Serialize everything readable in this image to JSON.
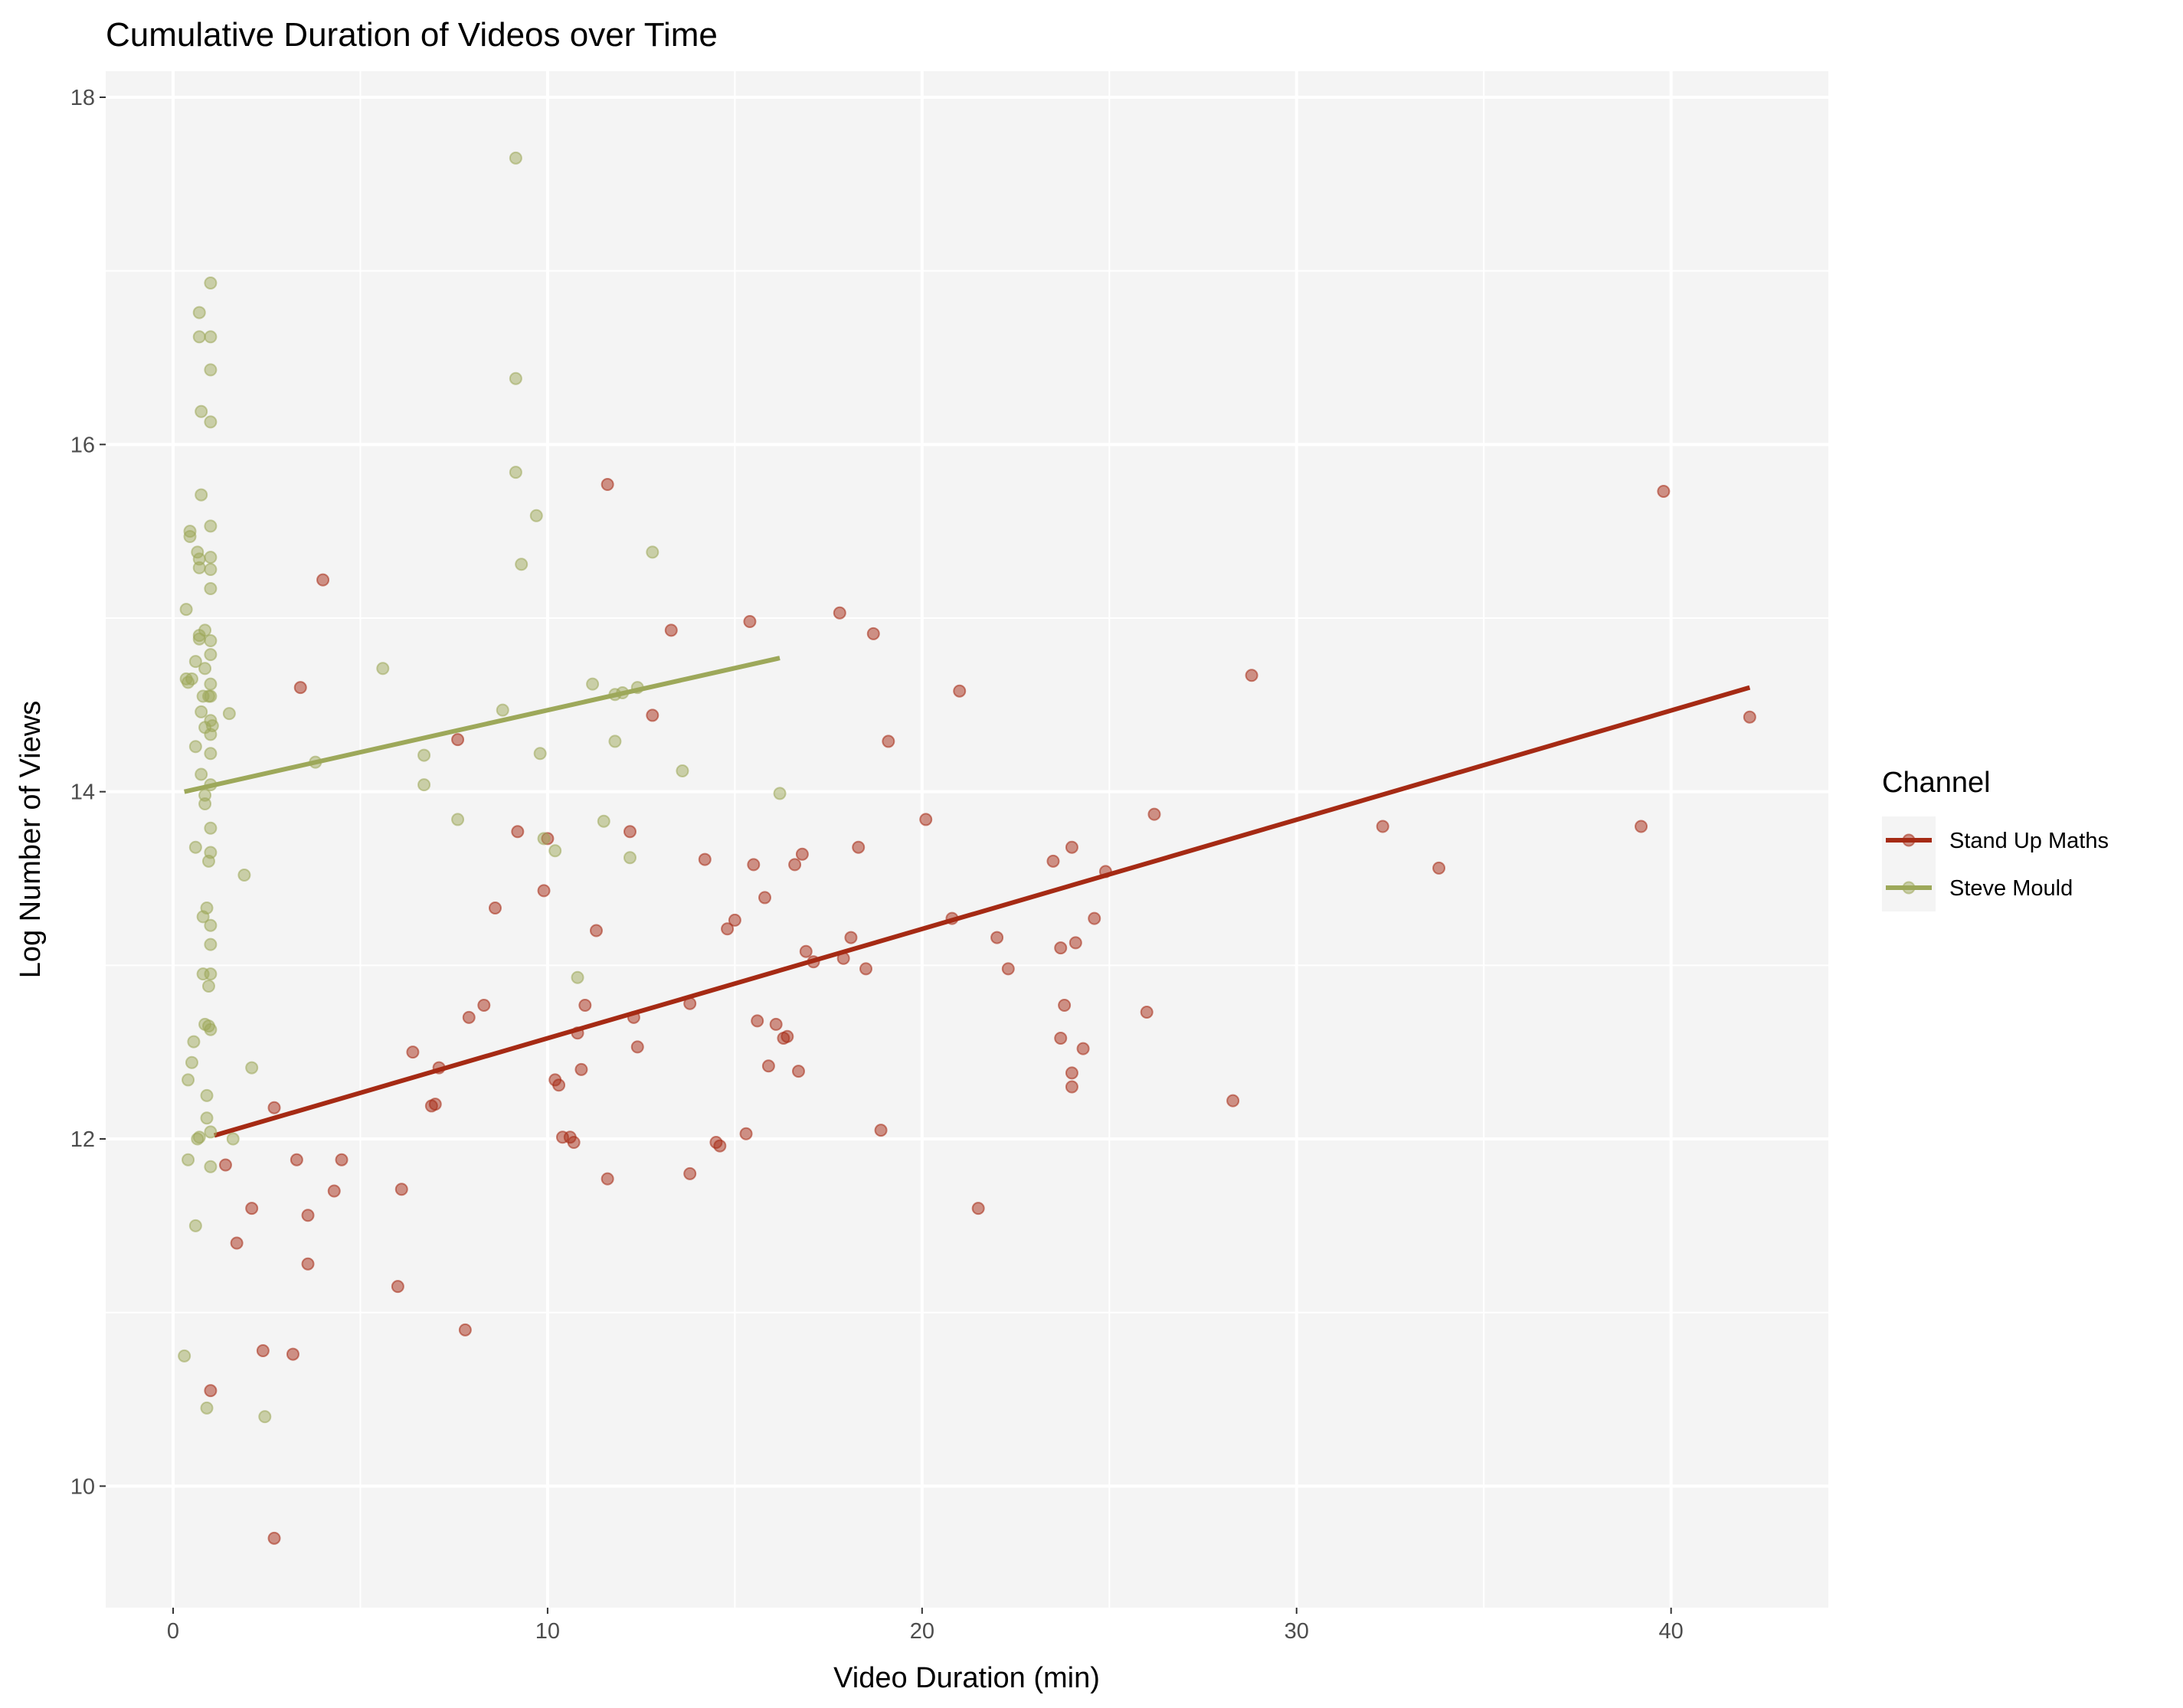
{
  "chart_data": {
    "type": "scatter",
    "title": "Cumulative Duration of Videos over Time",
    "xlabel": "Video Duration (min)",
    "ylabel": "Log Number of Views",
    "xlim": [
      -1.8,
      44.2
    ],
    "ylim": [
      9.3,
      18.15
    ],
    "x_ticks": [
      0,
      10,
      20,
      30,
      40
    ],
    "y_ticks": [
      10,
      12,
      14,
      16,
      18
    ],
    "grid": true,
    "legend": {
      "title": "Channel",
      "position": "right"
    },
    "series": [
      {
        "name": "Stand Up Maths",
        "color": "#A52A14",
        "points": [
          [
            1.0,
            10.55
          ],
          [
            1.4,
            11.85
          ],
          [
            1.7,
            11.4
          ],
          [
            2.1,
            11.6
          ],
          [
            2.4,
            10.78
          ],
          [
            2.7,
            12.18
          ],
          [
            2.7,
            9.7
          ],
          [
            3.2,
            10.76
          ],
          [
            3.3,
            11.88
          ],
          [
            3.4,
            14.6
          ],
          [
            3.6,
            11.56
          ],
          [
            3.6,
            11.28
          ],
          [
            4.0,
            15.22
          ],
          [
            4.3,
            11.7
          ],
          [
            4.5,
            11.88
          ],
          [
            6.0,
            11.15
          ],
          [
            6.1,
            11.71
          ],
          [
            6.4,
            12.5
          ],
          [
            6.9,
            12.19
          ],
          [
            7.0,
            12.2
          ],
          [
            7.1,
            12.41
          ],
          [
            7.6,
            14.3
          ],
          [
            7.8,
            10.9
          ],
          [
            7.9,
            12.7
          ],
          [
            8.3,
            12.77
          ],
          [
            8.6,
            13.33
          ],
          [
            9.2,
            13.77
          ],
          [
            9.9,
            13.43
          ],
          [
            10.0,
            13.73
          ],
          [
            10.2,
            12.34
          ],
          [
            10.3,
            12.31
          ],
          [
            10.4,
            12.01
          ],
          [
            10.6,
            12.01
          ],
          [
            10.7,
            11.98
          ],
          [
            10.8,
            12.61
          ],
          [
            10.9,
            12.4
          ],
          [
            11.0,
            12.77
          ],
          [
            11.3,
            13.2
          ],
          [
            11.6,
            15.77
          ],
          [
            11.6,
            11.77
          ],
          [
            12.2,
            13.77
          ],
          [
            12.3,
            12.7
          ],
          [
            12.4,
            12.53
          ],
          [
            12.8,
            14.44
          ],
          [
            13.3,
            14.93
          ],
          [
            13.8,
            12.78
          ],
          [
            13.8,
            11.8
          ],
          [
            14.2,
            13.61
          ],
          [
            14.5,
            11.98
          ],
          [
            14.6,
            11.96
          ],
          [
            14.8,
            13.21
          ],
          [
            15.0,
            13.26
          ],
          [
            15.3,
            12.03
          ],
          [
            15.4,
            14.98
          ],
          [
            15.5,
            13.58
          ],
          [
            15.6,
            12.68
          ],
          [
            15.8,
            13.39
          ],
          [
            15.9,
            12.42
          ],
          [
            16.1,
            12.66
          ],
          [
            16.3,
            12.58
          ],
          [
            16.4,
            12.59
          ],
          [
            16.6,
            13.58
          ],
          [
            16.7,
            12.39
          ],
          [
            16.8,
            13.64
          ],
          [
            16.9,
            13.08
          ],
          [
            17.1,
            13.02
          ],
          [
            17.8,
            15.03
          ],
          [
            17.9,
            13.04
          ],
          [
            18.1,
            13.16
          ],
          [
            18.3,
            13.68
          ],
          [
            18.5,
            12.98
          ],
          [
            18.7,
            14.91
          ],
          [
            18.9,
            12.05
          ],
          [
            19.1,
            14.29
          ],
          [
            20.1,
            13.84
          ],
          [
            20.8,
            13.27
          ],
          [
            21.0,
            14.58
          ],
          [
            21.5,
            11.6
          ],
          [
            22.0,
            13.16
          ],
          [
            22.3,
            12.98
          ],
          [
            23.5,
            13.6
          ],
          [
            23.7,
            12.58
          ],
          [
            23.7,
            13.1
          ],
          [
            23.8,
            12.77
          ],
          [
            24.0,
            13.68
          ],
          [
            24.0,
            12.38
          ],
          [
            24.0,
            12.3
          ],
          [
            24.1,
            13.13
          ],
          [
            24.3,
            12.52
          ],
          [
            24.6,
            13.27
          ],
          [
            24.9,
            13.54
          ],
          [
            26.0,
            12.73
          ],
          [
            26.2,
            13.87
          ],
          [
            28.3,
            12.22
          ],
          [
            28.8,
            14.67
          ],
          [
            32.3,
            13.8
          ],
          [
            33.8,
            13.56
          ],
          [
            39.2,
            13.8
          ],
          [
            39.8,
            15.73
          ],
          [
            42.1,
            14.43
          ]
        ],
        "trend": [
          [
            1.1,
            12.02
          ],
          [
            42.1,
            14.6
          ]
        ]
      },
      {
        "name": "Steve Mould",
        "color": "#9DA85A",
        "points": [
          [
            0.3,
            10.75
          ],
          [
            0.35,
            15.05
          ],
          [
            0.35,
            14.65
          ],
          [
            0.4,
            14.63
          ],
          [
            0.4,
            11.88
          ],
          [
            0.4,
            12.34
          ],
          [
            0.45,
            15.47
          ],
          [
            0.45,
            15.5
          ],
          [
            0.5,
            14.65
          ],
          [
            0.5,
            12.44
          ],
          [
            0.55,
            12.56
          ],
          [
            0.6,
            11.5
          ],
          [
            0.6,
            14.75
          ],
          [
            0.6,
            13.68
          ],
          [
            0.6,
            14.26
          ],
          [
            0.65,
            15.38
          ],
          [
            0.65,
            12.0
          ],
          [
            0.7,
            16.76
          ],
          [
            0.7,
            16.62
          ],
          [
            0.7,
            15.34
          ],
          [
            0.7,
            15.29
          ],
          [
            0.7,
            14.88
          ],
          [
            0.7,
            14.9
          ],
          [
            0.7,
            12.01
          ],
          [
            0.75,
            16.19
          ],
          [
            0.75,
            15.71
          ],
          [
            0.75,
            14.46
          ],
          [
            0.75,
            14.1
          ],
          [
            0.8,
            14.55
          ],
          [
            0.8,
            13.28
          ],
          [
            0.8,
            12.95
          ],
          [
            0.85,
            14.93
          ],
          [
            0.85,
            14.71
          ],
          [
            0.85,
            14.37
          ],
          [
            0.85,
            13.98
          ],
          [
            0.85,
            13.93
          ],
          [
            0.85,
            12.66
          ],
          [
            0.9,
            13.33
          ],
          [
            0.9,
            12.12
          ],
          [
            0.9,
            12.25
          ],
          [
            0.9,
            10.45
          ],
          [
            0.95,
            14.55
          ],
          [
            0.95,
            13.6
          ],
          [
            0.95,
            12.88
          ],
          [
            0.95,
            12.65
          ],
          [
            1.0,
            16.93
          ],
          [
            1.0,
            16.62
          ],
          [
            1.0,
            16.43
          ],
          [
            1.0,
            16.13
          ],
          [
            1.0,
            15.53
          ],
          [
            1.0,
            15.35
          ],
          [
            1.0,
            15.28
          ],
          [
            1.0,
            15.17
          ],
          [
            1.0,
            14.87
          ],
          [
            1.0,
            14.79
          ],
          [
            1.0,
            14.62
          ],
          [
            1.0,
            14.55
          ],
          [
            1.0,
            14.41
          ],
          [
            1.0,
            14.33
          ],
          [
            1.0,
            14.22
          ],
          [
            1.0,
            14.04
          ],
          [
            1.0,
            13.79
          ],
          [
            1.0,
            13.65
          ],
          [
            1.0,
            13.23
          ],
          [
            1.0,
            13.12
          ],
          [
            1.0,
            12.95
          ],
          [
            1.0,
            12.63
          ],
          [
            1.0,
            12.04
          ],
          [
            1.0,
            11.84
          ],
          [
            1.05,
            14.38
          ],
          [
            1.5,
            14.45
          ],
          [
            1.6,
            12.0
          ],
          [
            1.9,
            13.52
          ],
          [
            2.1,
            12.41
          ],
          [
            2.45,
            10.4
          ],
          [
            3.8,
            14.17
          ],
          [
            5.6,
            14.71
          ],
          [
            6.7,
            14.21
          ],
          [
            6.7,
            14.04
          ],
          [
            7.6,
            13.84
          ],
          [
            8.8,
            14.47
          ],
          [
            9.15,
            17.65
          ],
          [
            9.15,
            16.38
          ],
          [
            9.15,
            15.84
          ],
          [
            9.3,
            15.31
          ],
          [
            9.7,
            15.59
          ],
          [
            9.8,
            14.22
          ],
          [
            9.9,
            13.73
          ],
          [
            10.2,
            13.66
          ],
          [
            10.8,
            12.93
          ],
          [
            11.2,
            14.62
          ],
          [
            11.5,
            13.83
          ],
          [
            11.8,
            14.29
          ],
          [
            11.8,
            14.56
          ],
          [
            12.0,
            14.57
          ],
          [
            12.2,
            13.62
          ],
          [
            12.4,
            14.6
          ],
          [
            12.8,
            15.38
          ],
          [
            13.6,
            14.12
          ],
          [
            16.2,
            13.99
          ]
        ],
        "trend": [
          [
            0.3,
            14.0
          ],
          [
            16.2,
            14.77
          ]
        ]
      }
    ]
  }
}
